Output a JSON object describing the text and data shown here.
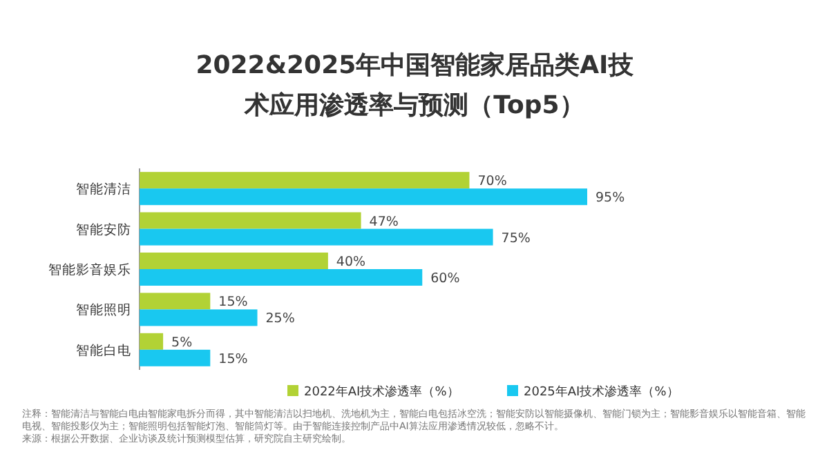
{
  "chart_data": {
    "type": "bar",
    "orientation": "horizontal",
    "title": "2022&2025年中国智能家居品类AI技术应用渗透率与预测（Top5）",
    "categories": [
      "智能清洁",
      "智能安防",
      "智能影音娱乐",
      "智能照明",
      "智能白电"
    ],
    "series": [
      {
        "name": "2022年AI技术渗透率（%）",
        "color": "#b2d235",
        "values": [
          70,
          47,
          40,
          15,
          5
        ],
        "value_labels": [
          "70%",
          "47%",
          "40%",
          "15%",
          "5%"
        ]
      },
      {
        "name": "2025年AI技术渗透率（%）",
        "color": "#19c8f0",
        "values": [
          95,
          75,
          60,
          25,
          15
        ],
        "value_labels": [
          "95%",
          "75%",
          "60%",
          "25%",
          "15%"
        ]
      }
    ],
    "legend": "bottom",
    "annotations": [
      "注释：智能清洁与智能白电由智能家电拆分而得，其中智能清洁以扫地机、洗地机为主，智能白电包括冰空洗；智能安防以智能摄像机、智能门锁为主；智能影音娱乐以智能音箱、智能电视、智能投影仪为主；智能照明包括智能灯泡、智能筒灯等。由于智能连接控制产品中AI算法应用渗透情况较低，忽略不计。",
      "来源：根据公开数据、企业访谈及统计预测模型估算，研究院自主研究绘制。"
    ]
  }
}
